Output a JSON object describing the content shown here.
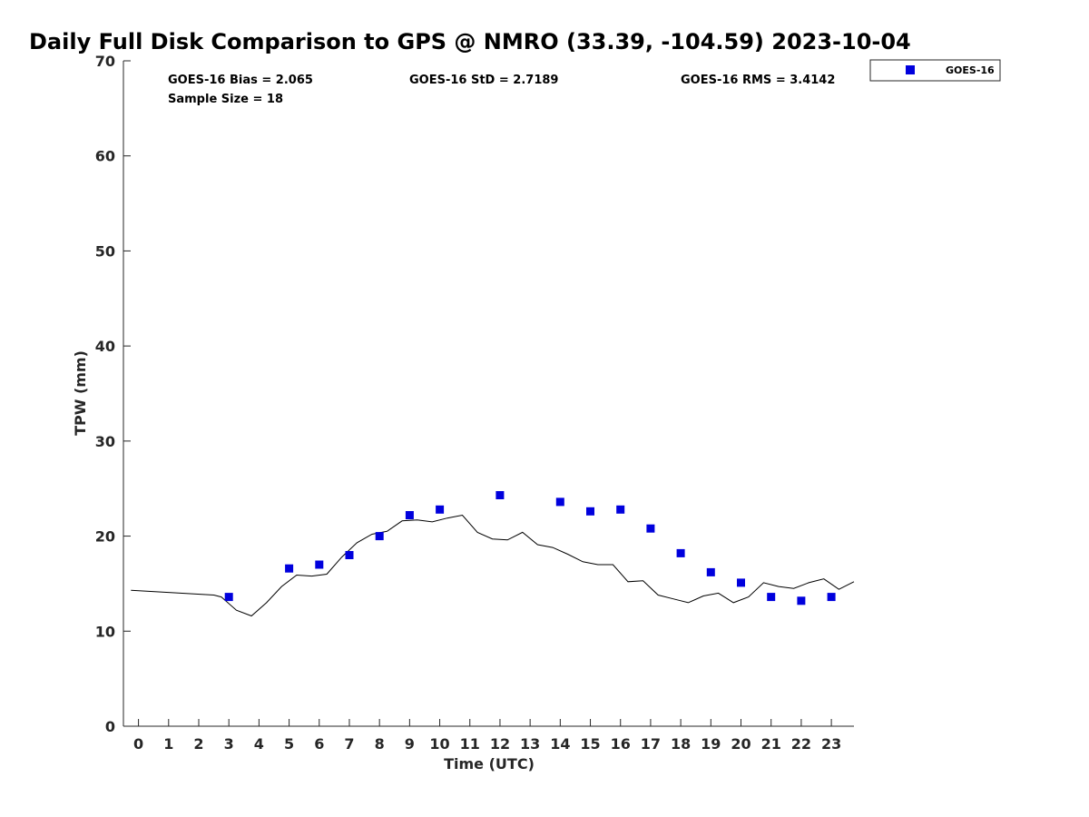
{
  "chart_data": {
    "type": "scatter",
    "title": "Daily Full Disk Comparison to GPS @ NMRO (33.39, -104.59) 2023-10-04",
    "xlabel": "Time (UTC)",
    "ylabel": "TPW (mm)",
    "xlim": [
      -0.5,
      23.75
    ],
    "ylim": [
      0,
      70
    ],
    "xticks": [
      "0",
      "1",
      "2",
      "3",
      "4",
      "5",
      "6",
      "7",
      "8",
      "9",
      "10",
      "11",
      "12",
      "13",
      "14",
      "15",
      "16",
      "17",
      "18",
      "19",
      "20",
      "21",
      "22",
      "23"
    ],
    "yticks": [
      "0",
      "10",
      "20",
      "30",
      "40",
      "50",
      "60",
      "70"
    ],
    "grid": false,
    "legend_position": "top-right",
    "stats": {
      "bias": "GOES-16 Bias = 2.065",
      "std": "GOES-16 StD = 2.7189",
      "rms": "GOES-16 RMS = 3.4142",
      "sample": "Sample Size = 18"
    },
    "series": [
      {
        "name": "GOES-16",
        "kind": "scatter",
        "color": "#0000dd",
        "x": [
          3,
          5,
          6,
          7,
          8,
          9,
          10,
          12,
          14,
          15,
          16,
          17,
          18,
          19,
          20,
          21,
          22,
          23
        ],
        "y": [
          13.6,
          16.6,
          17.0,
          18.0,
          20.0,
          22.2,
          22.8,
          24.3,
          23.6,
          22.6,
          22.8,
          20.8,
          18.2,
          16.2,
          15.1,
          13.6,
          13.2,
          13.6
        ]
      },
      {
        "kind": "line",
        "color": "#000000",
        "x": [
          -0.25,
          2.5,
          2.75,
          3.25,
          3.75,
          4.25,
          4.75,
          5.25,
          5.75,
          6.25,
          6.75,
          7.25,
          7.75,
          8.25,
          8.75,
          9.25,
          9.75,
          10.25,
          10.75,
          11.25,
          11.75,
          12.25,
          12.75,
          13.25,
          13.75,
          14.25,
          14.75,
          15.25,
          15.75,
          16.25,
          16.75,
          17.25,
          17.75,
          18.25,
          18.75,
          19.25,
          19.75,
          20.25,
          20.75,
          21.25,
          21.75,
          22.25,
          22.75,
          23.25,
          23.75
        ],
        "y": [
          14.3,
          13.8,
          13.6,
          12.2,
          11.6,
          13.0,
          14.7,
          15.9,
          15.8,
          16.0,
          17.8,
          19.3,
          20.2,
          20.5,
          21.6,
          21.7,
          21.5,
          21.9,
          22.2,
          20.4,
          19.7,
          19.6,
          20.4,
          19.1,
          18.8,
          18.1,
          17.3,
          17.0,
          17.0,
          15.2,
          15.3,
          13.8,
          13.4,
          13.0,
          13.7,
          14.0,
          13.0,
          13.6,
          15.1,
          14.7,
          14.5,
          15.1,
          15.5,
          14.4,
          15.2
        ]
      }
    ]
  }
}
